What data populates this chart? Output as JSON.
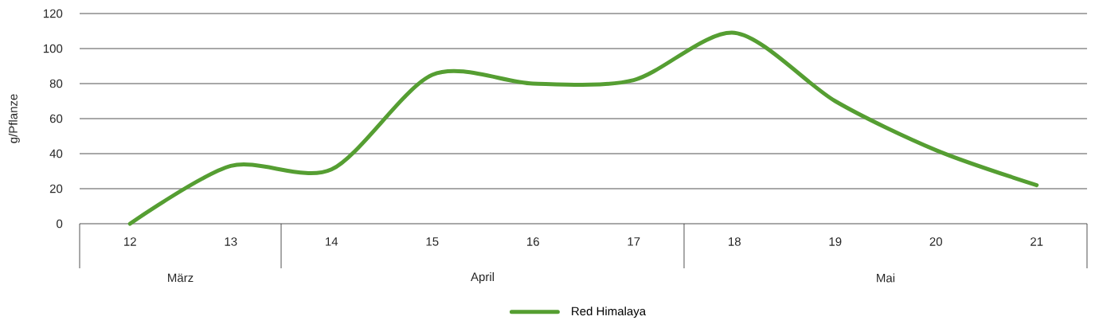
{
  "chart_data": {
    "type": "line",
    "ylabel": "g/Pflanze",
    "categories": [
      "12",
      "13",
      "14",
      "15",
      "16",
      "17",
      "18",
      "19",
      "20",
      "21"
    ],
    "series": [
      {
        "name": "Red Himalaya",
        "color": "#559e32",
        "values": [
          0,
          33,
          31,
          85,
          80,
          82,
          109,
          70,
          42,
          22
        ]
      }
    ],
    "ylim": [
      0,
      120
    ],
    "yticks": [
      0,
      20,
      40,
      60,
      80,
      100,
      120
    ],
    "grid": "y",
    "legend": "bottom",
    "marker": "none",
    "line_style": "solid",
    "annotations": [
      "März",
      "April",
      "Mai"
    ]
  }
}
